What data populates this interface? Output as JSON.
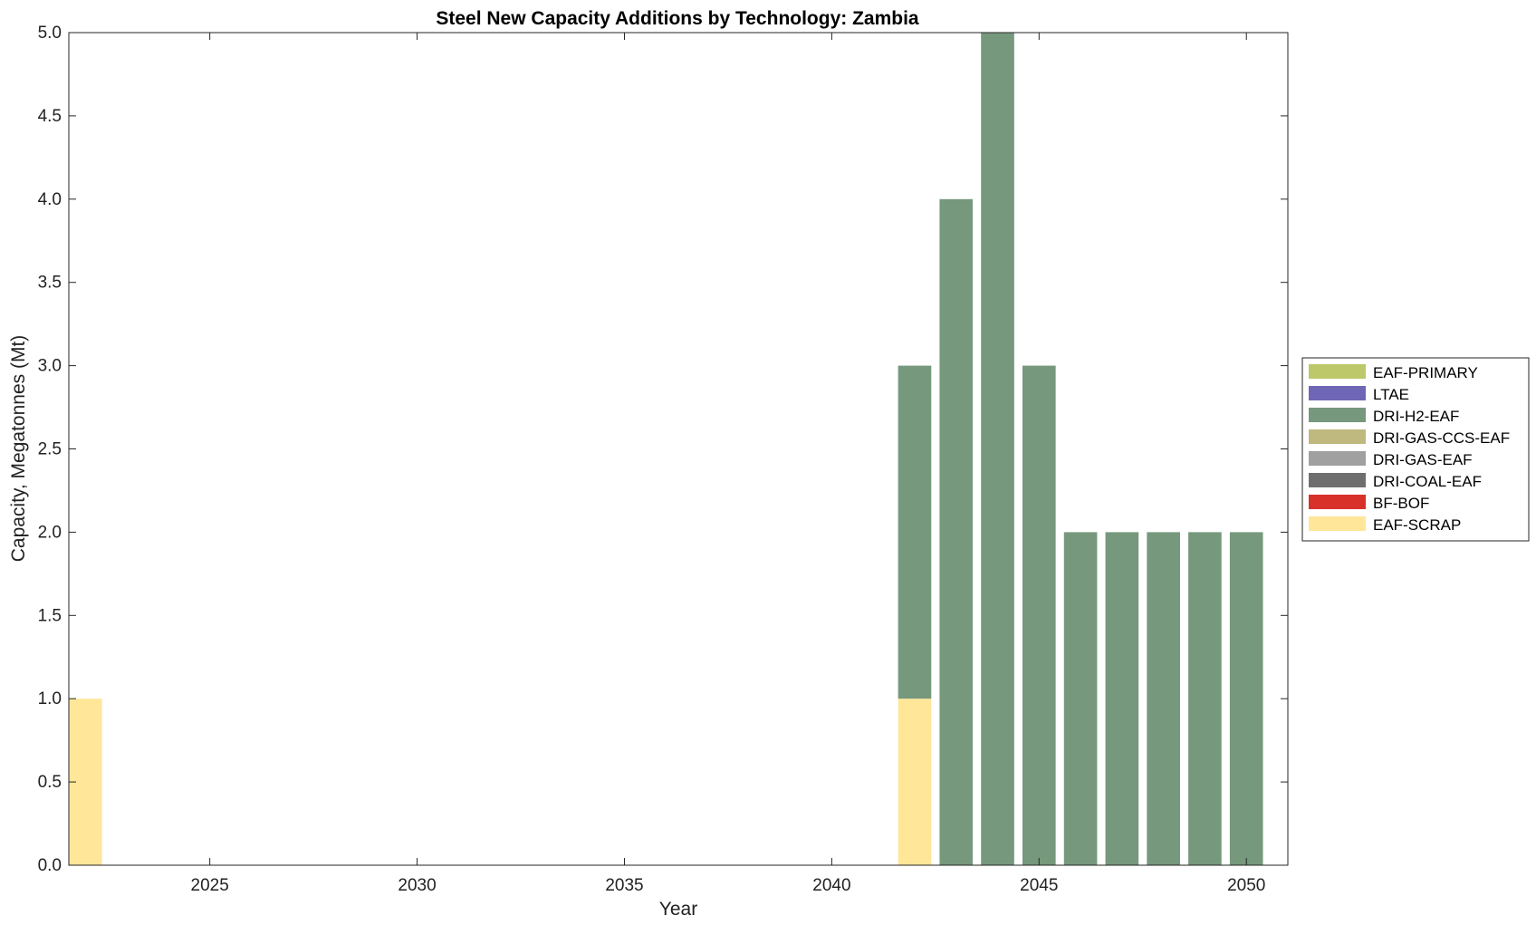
{
  "chart_data": {
    "type": "bar",
    "stacked": true,
    "title": "Steel New Capacity Additions by Technology: Zambia",
    "xlabel": "Year",
    "ylabel": "Capacity, Megatonnes (Mt)",
    "xlim": [
      2021.6,
      2051.0
    ],
    "ylim": [
      0,
      5
    ],
    "xticks": [
      2025,
      2030,
      2035,
      2040,
      2045,
      2050
    ],
    "yticks": [
      0.0,
      0.5,
      1.0,
      1.5,
      2.0,
      2.5,
      3.0,
      3.5,
      4.0,
      4.5,
      5.0
    ],
    "legend_position": "right",
    "categories": [
      2022,
      2023,
      2024,
      2025,
      2026,
      2027,
      2028,
      2029,
      2030,
      2031,
      2032,
      2033,
      2034,
      2035,
      2036,
      2037,
      2038,
      2039,
      2040,
      2041,
      2042,
      2043,
      2044,
      2045,
      2046,
      2047,
      2048,
      2049,
      2050
    ],
    "series": [
      {
        "name": "EAF-SCRAP",
        "color": "#FFE699",
        "values": [
          1,
          0,
          0,
          0,
          0,
          0,
          0,
          0,
          0,
          0,
          0,
          0,
          0,
          0,
          0,
          0,
          0,
          0,
          0,
          0,
          1,
          0,
          0,
          0,
          0,
          0,
          0,
          0,
          0
        ]
      },
      {
        "name": "BF-BOF",
        "color": "#D7312A",
        "values": [
          0,
          0,
          0,
          0,
          0,
          0,
          0,
          0,
          0,
          0,
          0,
          0,
          0,
          0,
          0,
          0,
          0,
          0,
          0,
          0,
          0,
          0,
          0,
          0,
          0,
          0,
          0,
          0,
          0
        ]
      },
      {
        "name": "DRI-COAL-EAF",
        "color": "#6E6E6E",
        "values": [
          0,
          0,
          0,
          0,
          0,
          0,
          0,
          0,
          0,
          0,
          0,
          0,
          0,
          0,
          0,
          0,
          0,
          0,
          0,
          0,
          0,
          0,
          0,
          0,
          0,
          0,
          0,
          0,
          0
        ]
      },
      {
        "name": "DRI-GAS-EAF",
        "color": "#A0A0A0",
        "values": [
          0,
          0,
          0,
          0,
          0,
          0,
          0,
          0,
          0,
          0,
          0,
          0,
          0,
          0,
          0,
          0,
          0,
          0,
          0,
          0,
          0,
          0,
          0,
          0,
          0,
          0,
          0,
          0,
          0
        ]
      },
      {
        "name": "DRI-GAS-CCS-EAF",
        "color": "#BFB87F",
        "values": [
          0,
          0,
          0,
          0,
          0,
          0,
          0,
          0,
          0,
          0,
          0,
          0,
          0,
          0,
          0,
          0,
          0,
          0,
          0,
          0,
          0,
          0,
          0,
          0,
          0,
          0,
          0,
          0,
          0
        ]
      },
      {
        "name": "DRI-H2-EAF",
        "color": "#76987C",
        "values": [
          0,
          0,
          0,
          0,
          0,
          0,
          0,
          0,
          0,
          0,
          0,
          0,
          0,
          0,
          0,
          0,
          0,
          0,
          0,
          0,
          2,
          4,
          5,
          3,
          2,
          2,
          2,
          2,
          2
        ]
      },
      {
        "name": "LTAE",
        "color": "#6F67B5",
        "values": [
          0,
          0,
          0,
          0,
          0,
          0,
          0,
          0,
          0,
          0,
          0,
          0,
          0,
          0,
          0,
          0,
          0,
          0,
          0,
          0,
          0,
          0,
          0,
          0,
          0,
          0,
          0,
          0,
          0
        ]
      },
      {
        "name": "EAF-PRIMARY",
        "color": "#BCC86A",
        "values": [
          0,
          0,
          0,
          0,
          0,
          0,
          0,
          0,
          0,
          0,
          0,
          0,
          0,
          0,
          0,
          0,
          0,
          0,
          0,
          0,
          0,
          0,
          0,
          0,
          0,
          0,
          0,
          0,
          0
        ]
      }
    ],
    "legend_order": [
      "EAF-PRIMARY",
      "LTAE",
      "DRI-H2-EAF",
      "DRI-GAS-CCS-EAF",
      "DRI-GAS-EAF",
      "DRI-COAL-EAF",
      "BF-BOF",
      "EAF-SCRAP"
    ]
  }
}
